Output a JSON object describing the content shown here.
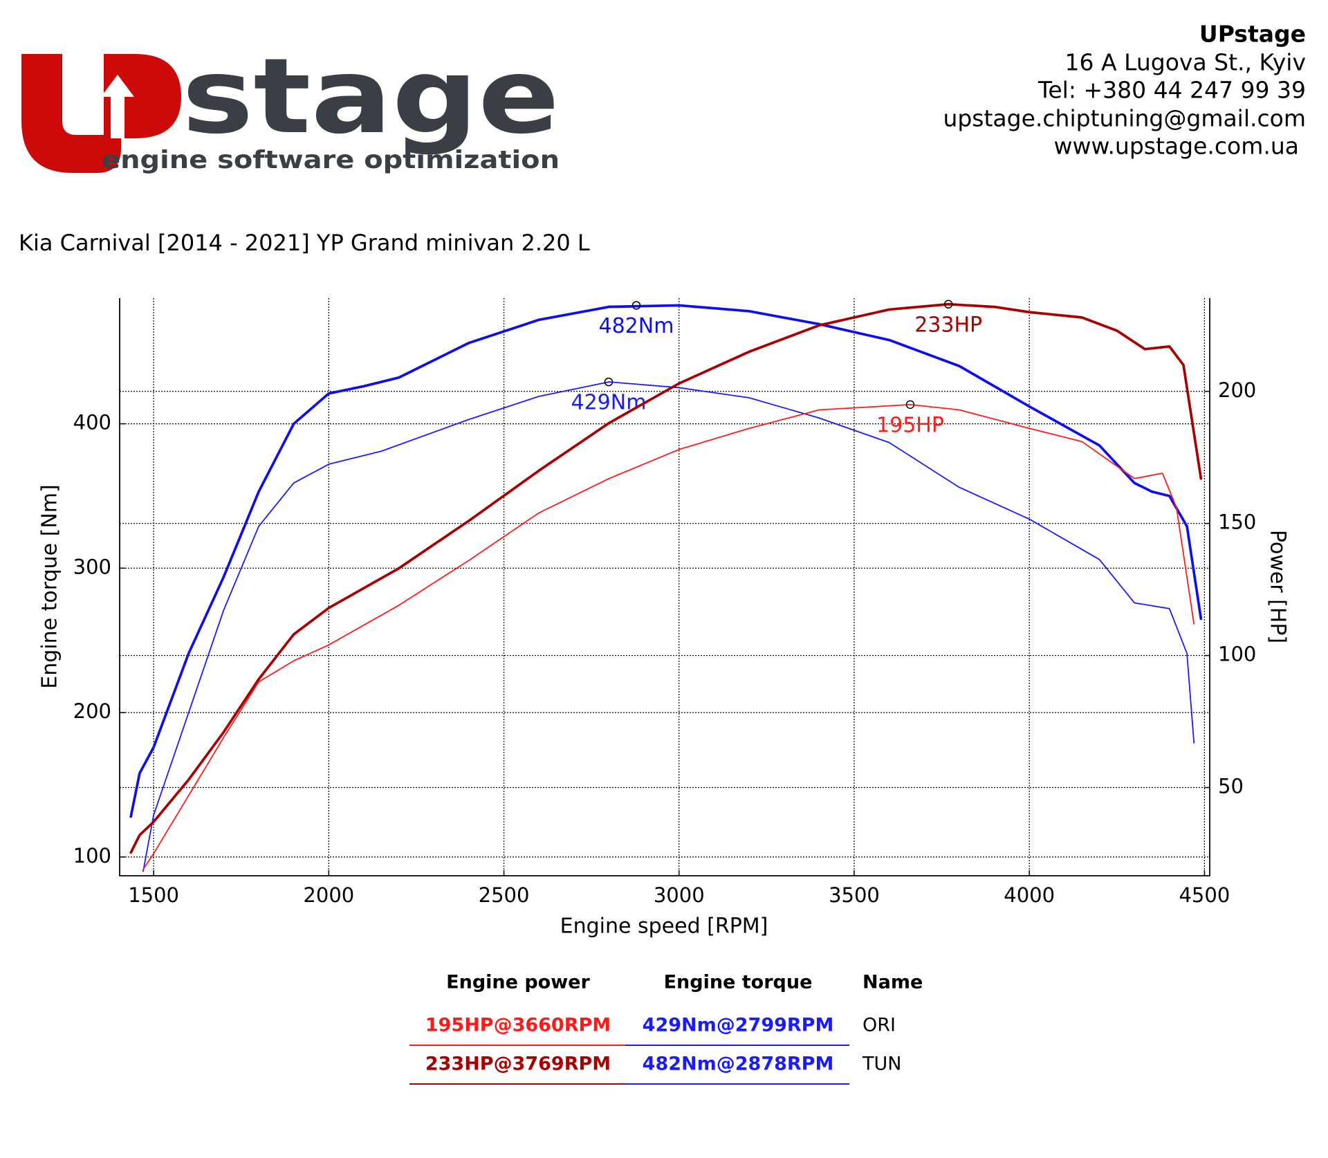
{
  "header": {
    "logo_text": "stage",
    "logo_tagline": "engine software optimization",
    "company": "UPstage",
    "address": "16 A Lugova St., Kyiv",
    "phone": "Tel: +380 44 247 99 39",
    "email": "upstage.chiptuning@gmail.com",
    "website": "www.upstage.com.ua"
  },
  "chart_data": {
    "type": "line",
    "title": "Kia Carnival [2014 - 2021] YP Grand minivan 2.20 L",
    "x_label": "Engine speed [RPM]",
    "y_label": "Engine torque [Nm]",
    "y2_label": "Power [HP]",
    "xlim": [
      1403,
      4515
    ],
    "xticks": [
      1500,
      2000,
      2500,
      3000,
      3500,
      4000,
      4500
    ],
    "ylim": [
      87,
      487
    ],
    "yticks": [
      100,
      200,
      300,
      400
    ],
    "y2lim": [
      16.6,
      235.3
    ],
    "y2ticks": [
      50,
      100,
      150,
      200
    ],
    "grid": true,
    "series": [
      {
        "color": "#0d0df0",
        "style": "thick",
        "axis": "y",
        "x": [
          1435,
          1460,
          1500,
          1600,
          1700,
          1800,
          1900,
          2000,
          2100,
          2200,
          2400,
          2600,
          2800,
          3000,
          3200,
          3400,
          3600,
          3800,
          4000,
          4200,
          4300,
          4350,
          4400,
          4450,
          4490
        ],
        "values": [
          128,
          158,
          176,
          241,
          294,
          353,
          400,
          421,
          426,
          432,
          456,
          472,
          481,
          482,
          478,
          469,
          458,
          440,
          412,
          385,
          359,
          353,
          350,
          329,
          265
        ],
        "peak": {
          "x": 2878,
          "value": 482,
          "label": "482Nm"
        }
      },
      {
        "color": "#1a1aff",
        "style": "thin",
        "axis": "y",
        "x": [
          1470,
          1500,
          1600,
          1700,
          1800,
          1900,
          2000,
          2150,
          2400,
          2600,
          2800,
          3000,
          3200,
          3400,
          3600,
          3800,
          4000,
          4200,
          4300,
          4400,
          4450,
          4470
        ],
        "values": [
          90,
          129,
          200,
          271,
          329,
          359,
          372,
          381,
          403,
          419,
          429,
          425,
          418,
          404,
          387,
          356,
          334,
          306,
          276,
          272,
          241,
          179
        ],
        "peak": {
          "x": 2799,
          "value": 429,
          "label": "429Nm"
        }
      },
      {
        "color": "#a80000",
        "style": "thick",
        "axis": "y2",
        "x": [
          1435,
          1460,
          1500,
          1600,
          1700,
          1800,
          1900,
          2000,
          2200,
          2400,
          2600,
          2800,
          3000,
          3200,
          3400,
          3600,
          3769,
          3900,
          4000,
          4150,
          4250,
          4330,
          4400,
          4440,
          4490
        ],
        "values": [
          25.4,
          32,
          37,
          53,
          71,
          91,
          108,
          118,
          133,
          151,
          170,
          188,
          203,
          215,
          225,
          231,
          233,
          232,
          230,
          228,
          223,
          216,
          217,
          210,
          167
        ],
        "peak": {
          "x": 3769,
          "value": 233,
          "label": "233HP"
        }
      },
      {
        "color": "#ff1a1a",
        "style": "thin",
        "axis": "y2",
        "x": [
          1470,
          1500,
          1600,
          1700,
          1800,
          1900,
          2000,
          2200,
          2400,
          2600,
          2800,
          3000,
          3200,
          3400,
          3660,
          3800,
          4000,
          4150,
          4300,
          4380,
          4420,
          4470
        ],
        "values": [
          19,
          25,
          47,
          69,
          90,
          98,
          104,
          119,
          136,
          154,
          167,
          178,
          186,
          193,
          195,
          193,
          186,
          181,
          167,
          169,
          156,
          112
        ],
        "peak": {
          "x": 3660,
          "value": 195,
          "label": "195HP"
        }
      }
    ]
  },
  "table": {
    "columns": [
      "Engine power",
      "Engine torque",
      "Name"
    ],
    "rows": [
      [
        "195HP@3660RPM",
        "429Nm@2799RPM",
        "ORI"
      ],
      [
        "233HP@3769RPM",
        "482Nm@2878RPM",
        "TUN"
      ]
    ],
    "row_colors": [
      [
        "#ff1a1a",
        "#1a1aff",
        "#000000"
      ],
      [
        "#a80000",
        "#1a1aff",
        "#000000"
      ]
    ]
  }
}
